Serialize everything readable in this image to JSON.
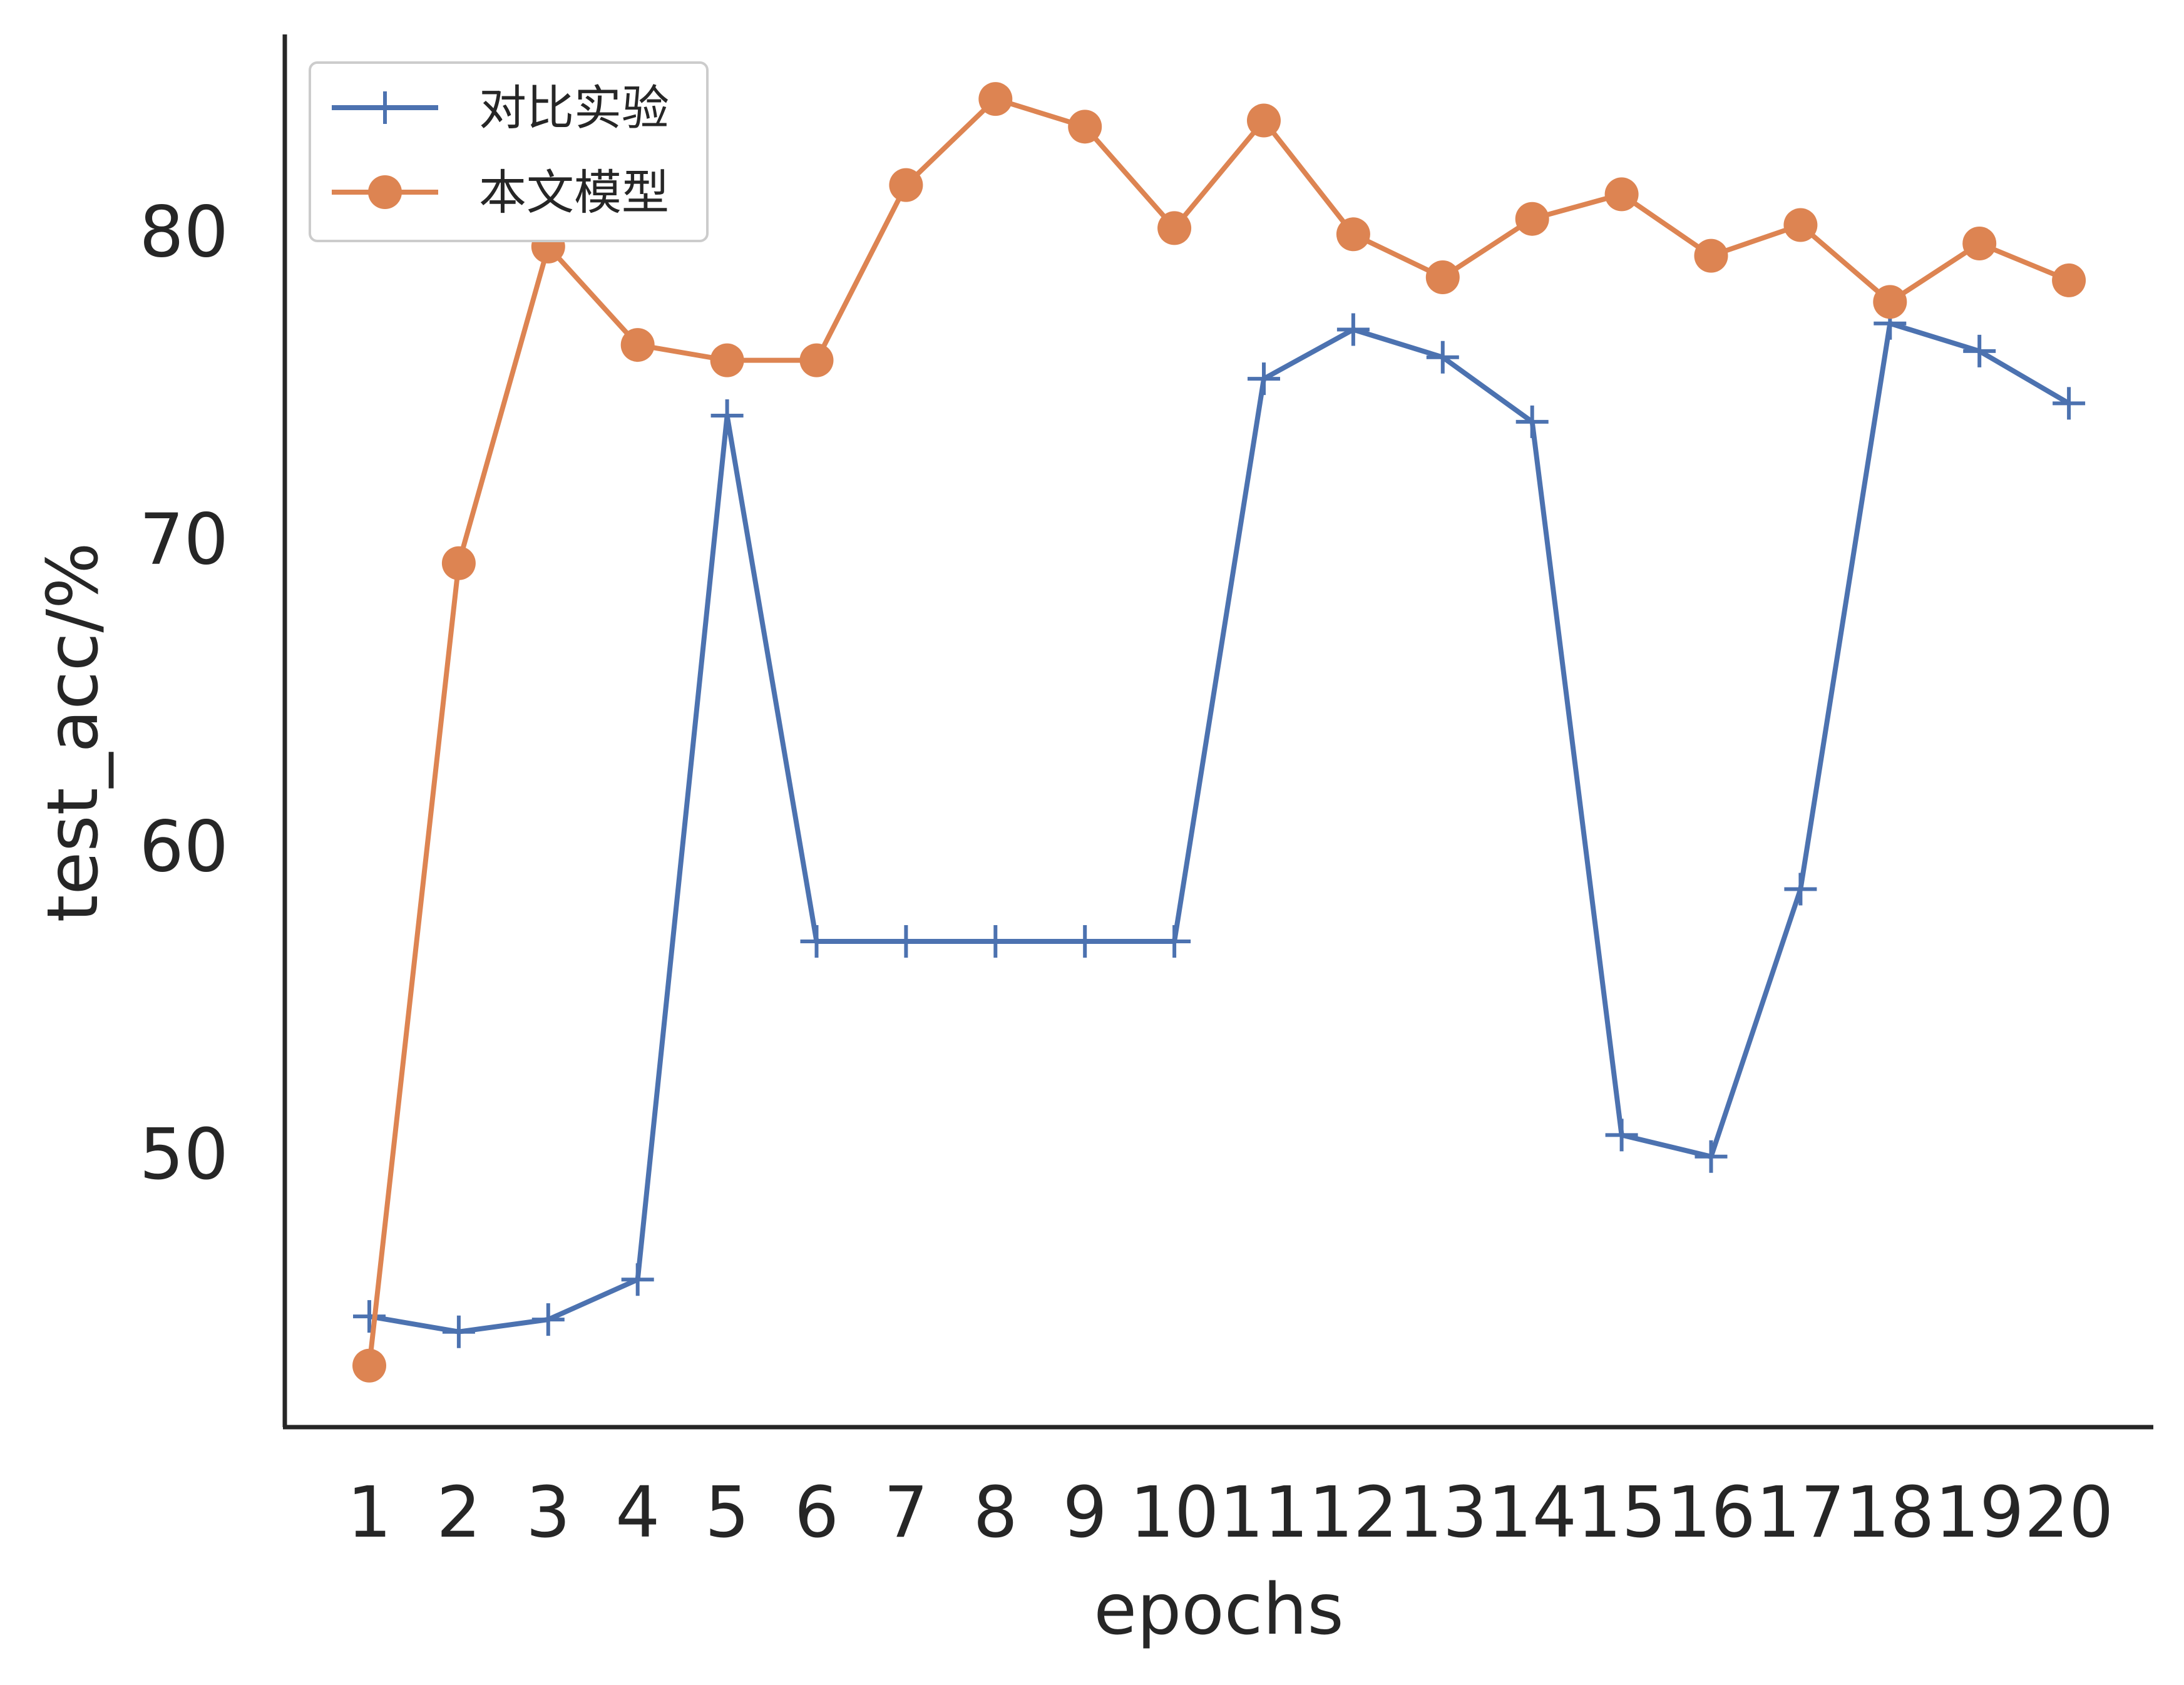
{
  "chart_data": {
    "type": "line",
    "title": "",
    "xlabel": "epochs",
    "ylabel": "test_acc/%",
    "x": [
      1,
      2,
      3,
      4,
      5,
      6,
      7,
      8,
      9,
      10,
      11,
      12,
      13,
      14,
      15,
      16,
      17,
      18,
      19,
      20
    ],
    "x_tick_labels": [
      "1",
      "2",
      "3",
      "4",
      "5",
      "6",
      "7",
      "8",
      "9",
      "10",
      "11",
      "12",
      "13",
      "14",
      "15",
      "16",
      "17",
      "18",
      "19",
      "20"
    ],
    "y_ticks": [
      50,
      60,
      70,
      80
    ],
    "ylim": [
      41.1,
      86.4
    ],
    "grid": false,
    "legend_position": "top-left",
    "series": [
      {
        "name": "对比实验",
        "color": "#4c72b0",
        "marker": "plus",
        "values": [
          44.7,
          44.2,
          44.6,
          45.9,
          74.0,
          56.9,
          56.9,
          56.9,
          56.9,
          56.9,
          75.2,
          76.8,
          75.9,
          73.8,
          50.6,
          49.9,
          58.6,
          77.0,
          76.1,
          74.4
        ]
      },
      {
        "name": "本文模型",
        "color": "#dd8452",
        "marker": "circle",
        "values": [
          43.1,
          69.2,
          79.5,
          76.3,
          75.8,
          75.8,
          81.5,
          84.3,
          83.4,
          80.1,
          83.6,
          79.9,
          78.5,
          80.4,
          81.2,
          79.2,
          80.2,
          77.7,
          79.6,
          78.4
        ]
      }
    ]
  }
}
